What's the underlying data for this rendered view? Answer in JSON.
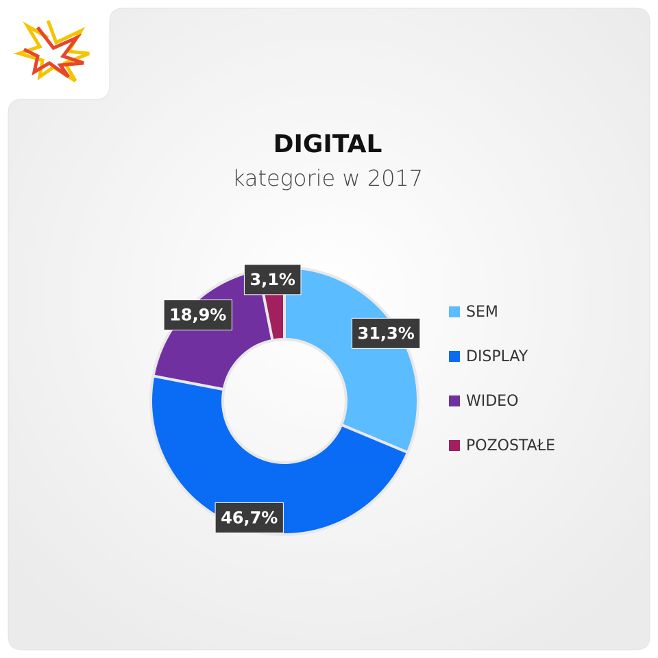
{
  "chart_data": {
    "type": "donut",
    "title": "DIGITAL",
    "subtitle": "kategorie w 2017",
    "categories": [
      "SEM",
      "DISPLAY",
      "WIDEO",
      "POZOSTAŁE"
    ],
    "values": [
      31.3,
      46.7,
      18.9,
      3.1
    ],
    "value_labels": [
      "31,3%",
      "46,7%",
      "18,9%",
      "3,1%"
    ],
    "colors": [
      "#5bbcff",
      "#0a6cf5",
      "#7030a0",
      "#a3205f"
    ],
    "legend": "right"
  }
}
